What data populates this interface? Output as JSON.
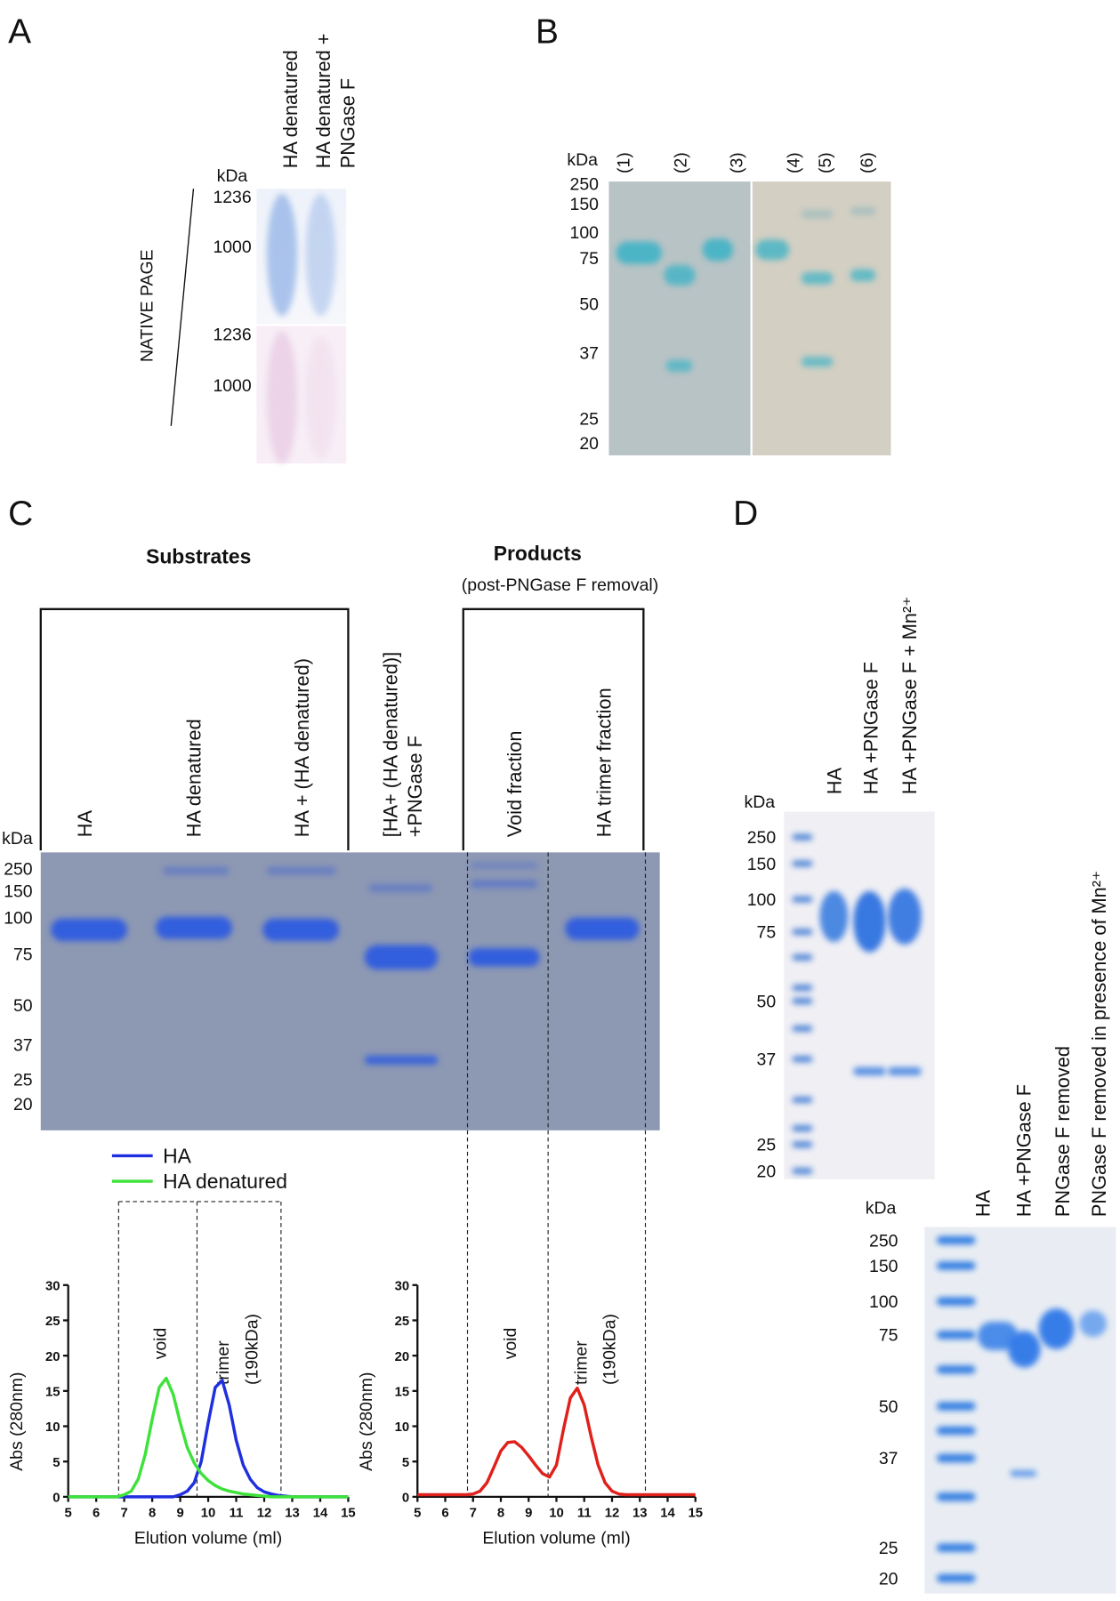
{
  "panel_a": {
    "label": "A",
    "lanes": [
      "HA denatured",
      [
        "HA denatured +",
        "PNGase F"
      ]
    ],
    "kda": "kDa",
    "markers_top": [
      1236,
      1000
    ],
    "markers_bottom": [
      1236,
      1000
    ],
    "side_label": "NATIVE PAGE"
  },
  "panel_b": {
    "label": "B",
    "kda": "kDa",
    "lanes": [
      "(1)",
      "(2)",
      "(3)",
      "(4)",
      "(5)",
      "(6)"
    ],
    "markers": [
      250,
      150,
      100,
      75,
      50,
      37,
      25,
      20
    ]
  },
  "panel_c": {
    "label": "C",
    "substrates": "Substrates",
    "products": "Products",
    "products_note": "(post-PNGase F removal)",
    "kda": "kDa",
    "lanes": [
      "HA",
      "HA denatured",
      "HA + (HA denatured)",
      [
        "[HA+ (HA denatured)]",
        "+PNGase F"
      ],
      "Void fraction",
      "HA trimer fraction"
    ],
    "markers": [
      250,
      150,
      100,
      75,
      50,
      37,
      25,
      20
    ]
  },
  "panel_d": {
    "label": "D",
    "top": {
      "kda": "kDa",
      "lanes": [
        "HA",
        "HA +PNGase F",
        "HA +PNGase F + Mn²⁺"
      ],
      "markers": [
        250,
        150,
        100,
        75,
        50,
        37,
        25,
        20
      ]
    },
    "bottom": {
      "kda": "kDa",
      "lanes": [
        "HA",
        "HA +PNGase F",
        "PNGase F removed",
        "PNGase F removed in presence  of Mn²⁺"
      ],
      "markers": [
        250,
        150,
        100,
        75,
        50,
        37,
        25,
        20
      ]
    }
  },
  "chart_data": [
    {
      "type": "line",
      "xlabel": "Elution volume (ml)",
      "ylabel": "Abs (280nm)",
      "x": [
        5,
        5.25,
        5.5,
        5.75,
        6,
        6.25,
        6.5,
        6.75,
        7,
        7.25,
        7.5,
        7.75,
        8,
        8.25,
        8.5,
        8.75,
        9,
        9.25,
        9.5,
        9.75,
        10,
        10.25,
        10.5,
        10.75,
        11,
        11.25,
        11.5,
        11.75,
        12,
        12.25,
        12.5,
        12.75,
        13,
        13.25,
        13.5,
        13.75,
        14,
        14.25,
        14.5,
        14.75,
        15
      ],
      "series": [
        {
          "name": "HA",
          "color": "#1f2fe0",
          "values": [
            0,
            0,
            0,
            0,
            0,
            0,
            0,
            0,
            0,
            0,
            0,
            0,
            0,
            0,
            0,
            0,
            0.3,
            0.8,
            2,
            5,
            10.5,
            15.5,
            16.5,
            13,
            8,
            4.5,
            2.5,
            1.3,
            0.7,
            0.4,
            0.2,
            0.1,
            0,
            0,
            0,
            0,
            0,
            0,
            0,
            0,
            0
          ]
        },
        {
          "name": "HA denatured",
          "color": "#3ee23a",
          "values": [
            0,
            0,
            0,
            0,
            0,
            0,
            0,
            0,
            0.3,
            0.8,
            2.5,
            6,
            11,
            15.5,
            16.8,
            14.5,
            10.5,
            7,
            4.8,
            3.3,
            2.3,
            1.6,
            1.1,
            0.8,
            0.6,
            0.4,
            0.3,
            0.2,
            0.1,
            0,
            0,
            0,
            0,
            0,
            0,
            0,
            0,
            0,
            0,
            0,
            0
          ]
        }
      ],
      "xlim": [
        5,
        15
      ],
      "ylim": [
        0,
        30
      ],
      "xticks": [
        5,
        6,
        7,
        8,
        9,
        10,
        11,
        12,
        13,
        14,
        15
      ],
      "yticks": [
        0,
        5,
        10,
        15,
        20,
        25,
        30
      ],
      "fraction_bounds": [
        6.8,
        9.6,
        12.6
      ],
      "annotations": [
        "void",
        "trimer",
        "(190kDa)"
      ]
    },
    {
      "type": "line",
      "xlabel": "Elution volume (ml)",
      "ylabel": "Abs (280nm)",
      "x": [
        5,
        5.25,
        5.5,
        5.75,
        6,
        6.25,
        6.5,
        6.75,
        7,
        7.25,
        7.5,
        7.75,
        8,
        8.25,
        8.5,
        8.75,
        9,
        9.25,
        9.5,
        9.75,
        10,
        10.25,
        10.5,
        10.75,
        11,
        11.25,
        11.5,
        11.75,
        12,
        12.25,
        12.5,
        12.75,
        13,
        13.25,
        13.5,
        13.75,
        14,
        14.25,
        14.5,
        14.75,
        15
      ],
      "series": [
        {
          "color": "#e0201b",
          "values": [
            0.3,
            0.3,
            0.3,
            0.3,
            0.3,
            0.3,
            0.3,
            0.3,
            0.4,
            0.8,
            2,
            4.2,
            6.5,
            7.7,
            7.8,
            7,
            5.8,
            4.5,
            3.3,
            2.8,
            4.5,
            9.5,
            14,
            15.4,
            13,
            8.5,
            4.5,
            2,
            0.8,
            0.4,
            0.3,
            0.3,
            0.3,
            0.3,
            0.3,
            0.3,
            0.3,
            0.3,
            0.3,
            0.3,
            0.3
          ]
        }
      ],
      "xlim": [
        5,
        15
      ],
      "ylim": [
        0,
        30
      ],
      "xticks": [
        5,
        6,
        7,
        8,
        9,
        10,
        11,
        12,
        13,
        14,
        15
      ],
      "yticks": [
        0,
        5,
        10,
        15,
        20,
        25,
        30
      ],
      "fraction_bounds": [
        6.8,
        9.7,
        13.2
      ],
      "annotations": [
        "void",
        "trimer",
        "(190kDa)"
      ]
    }
  ]
}
